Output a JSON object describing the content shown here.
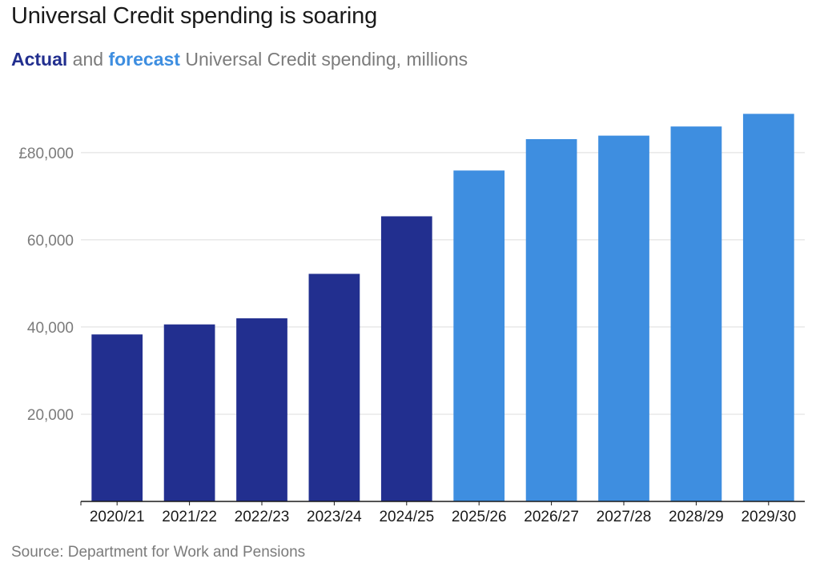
{
  "title": "Universal Credit spending is soaring",
  "subtitle": {
    "actual_label": "Actual",
    "and_text": " and ",
    "forecast_label": "forecast",
    "rest_text": " Universal Credit spending, millions"
  },
  "source": "Source: Department for Work and Pensions",
  "colors": {
    "actual": "#222f8f",
    "forecast": "#3e8ee0",
    "grid": "#dddddd",
    "axis": "#1a1a1a"
  },
  "chart_data": {
    "type": "bar",
    "title": "Universal Credit spending is soaring",
    "subtitle": "Actual and forecast Universal Credit spending, millions",
    "categories": [
      "2020/21",
      "2021/22",
      "2022/23",
      "2023/24",
      "2024/25",
      "2025/26",
      "2026/27",
      "2027/28",
      "2028/29",
      "2029/30"
    ],
    "series": [
      {
        "name": "Actual",
        "values": [
          38300,
          40600,
          42000,
          52200,
          65400,
          null,
          null,
          null,
          null,
          null
        ]
      },
      {
        "name": "forecast",
        "values": [
          null,
          null,
          null,
          null,
          null,
          75900,
          83100,
          83900,
          86000,
          88900
        ]
      }
    ],
    "y_ticks": [
      20000,
      40000,
      60000,
      80000
    ],
    "y_tick_labels": [
      "20,000",
      "40,000",
      "60,000",
      "£80,000"
    ],
    "ylim": [
      0,
      93000
    ],
    "xlabel": "",
    "ylabel": "",
    "grid": true,
    "legend": "in subtitle"
  }
}
